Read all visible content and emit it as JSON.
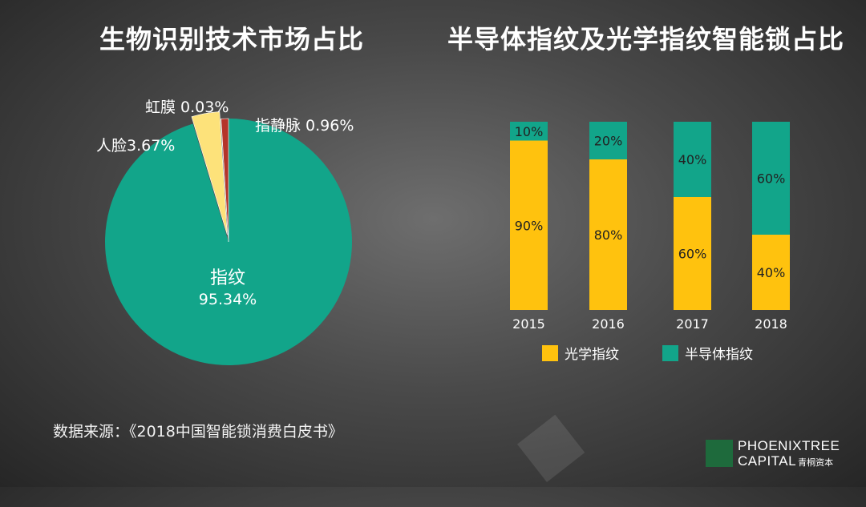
{
  "pie_title": "生物识别技术市场占比",
  "bar_title": "半导体指纹及光学指纹智能锁占比",
  "source_text": "数据来源：《2018中国智能锁消费白皮书》",
  "logo": {
    "line1": "PHOENIXTREE",
    "line2": "CAPITAL",
    "cn": "青桐资本"
  },
  "colors": {
    "teal": "#12A58A",
    "yellow": "#FFC20E",
    "light_yellow": "#FDE27A",
    "dark_red": "#B5342A",
    "white": "#FFFFFF"
  },
  "chart_data": [
    {
      "type": "pie",
      "title": "生物识别技术市场占比",
      "slices": [
        {
          "label": "指纹",
          "value": 95.34,
          "value_label": "95.34%",
          "color": "#12A58A"
        },
        {
          "label": "人脸",
          "value": 3.67,
          "value_label": "3.67%",
          "color": "#FDE27A"
        },
        {
          "label": "虹膜",
          "value": 0.03,
          "value_label": "0.03%",
          "color": "#FFFFFF"
        },
        {
          "label": "指静脉",
          "value": 0.96,
          "value_label": "0.96%",
          "color": "#B5342A"
        }
      ]
    },
    {
      "type": "bar",
      "stacked": true,
      "title": "半导体指纹及光学指纹智能锁占比",
      "categories": [
        "2015",
        "2016",
        "2017",
        "2018"
      ],
      "series": [
        {
          "name": "光学指纹",
          "values": [
            90,
            80,
            60,
            40
          ],
          "labels": [
            "90%",
            "80%",
            "60%",
            "40%"
          ],
          "color": "#FFC20E"
        },
        {
          "name": "半导体指纹",
          "values": [
            10,
            20,
            40,
            60
          ],
          "labels": [
            "10%",
            "20%",
            "40%",
            "60%"
          ],
          "color": "#12A58A"
        }
      ],
      "ylim": [
        0,
        100
      ],
      "legend": "bottom"
    }
  ]
}
